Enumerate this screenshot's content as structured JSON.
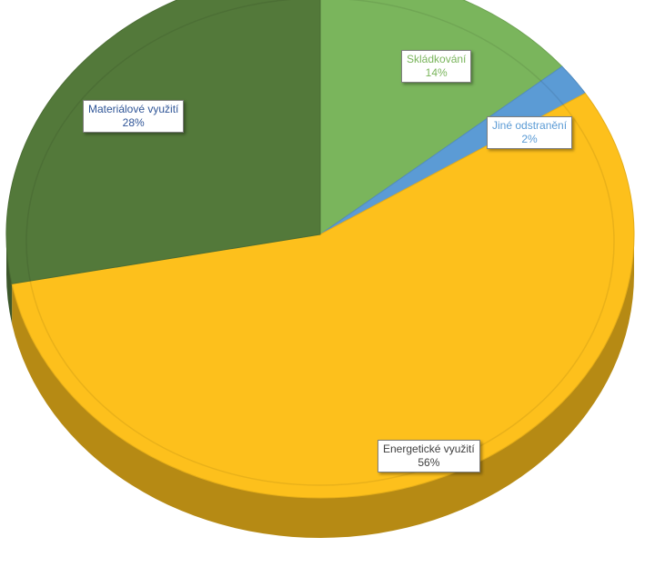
{
  "chart_data": {
    "type": "pie",
    "title": "",
    "legend": "none",
    "slices": [
      {
        "label": "Skládkování",
        "value": 14,
        "value_label": "14%",
        "color": "#7ab55c",
        "label_color": "#7ab55c"
      },
      {
        "label": "Jiné odstranění",
        "value": 2,
        "value_label": "2%",
        "color": "#5b9bd5",
        "label_color": "#5b9bd5"
      },
      {
        "label": "Energetické využití",
        "value": 56,
        "value_label": "56%",
        "color": "#fdc01c",
        "label_color": "#404040"
      },
      {
        "label": "Materiálové využití",
        "value": 28,
        "value_label": "28%",
        "color": "#53793a",
        "label_color": "#2f5597"
      }
    ]
  }
}
